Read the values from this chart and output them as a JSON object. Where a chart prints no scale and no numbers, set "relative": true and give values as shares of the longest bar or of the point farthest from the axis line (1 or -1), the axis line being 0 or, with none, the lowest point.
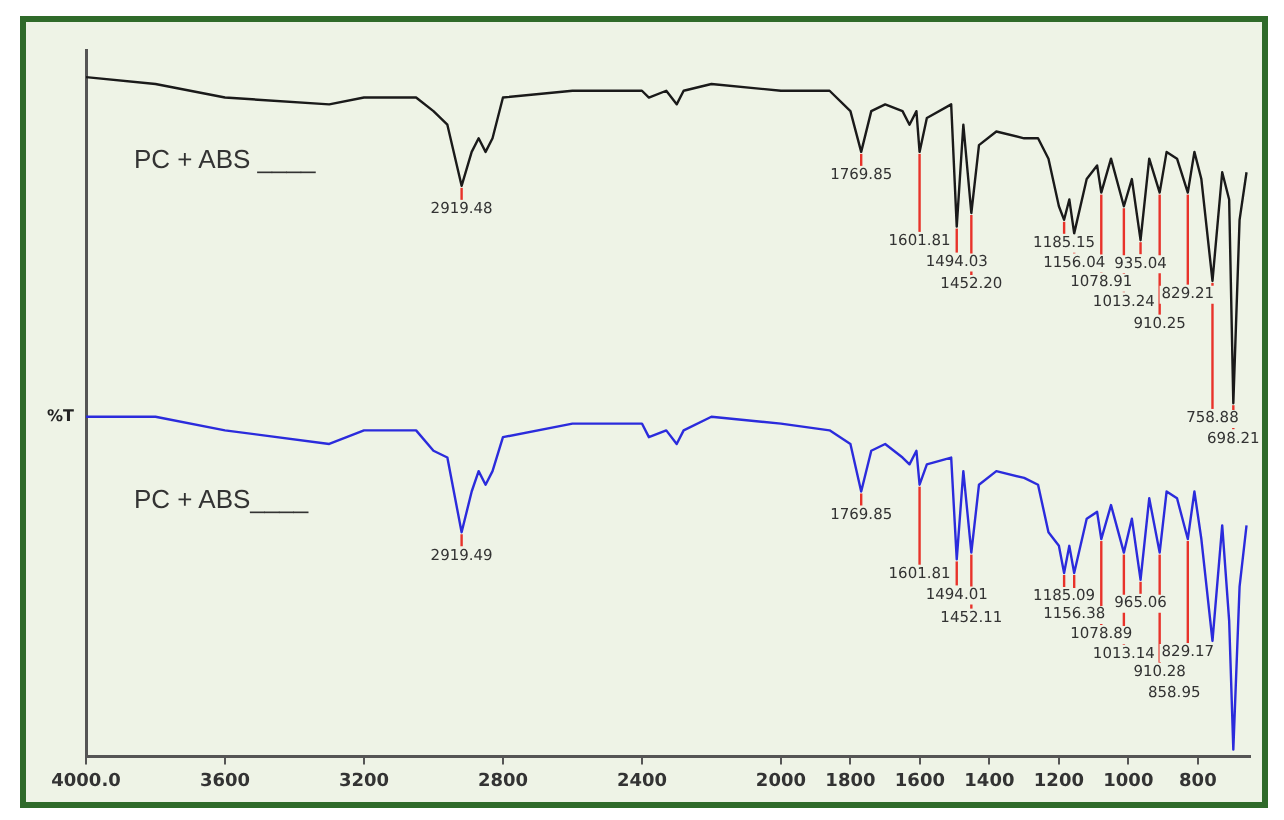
{
  "chart_data": {
    "type": "line",
    "relative": true,
    "ylabel": "%T",
    "grid": false,
    "legend": false,
    "marker": "none",
    "line_style": "solid",
    "xlim": [
      4000,
      650
    ],
    "xticks": [
      {
        "value": 4000,
        "label": "4000.0"
      },
      3600,
      3200,
      2800,
      2400,
      2000,
      1800,
      1600,
      1400,
      1200,
      1000,
      800
    ],
    "x": [
      4000,
      3800,
      3600,
      3300,
      3200,
      3050,
      3000,
      2960,
      2919,
      2890,
      2870,
      2850,
      2830,
      2800,
      2600,
      2400,
      2380,
      2330,
      2300,
      2280,
      2200,
      2000,
      1860,
      1800,
      1769,
      1740,
      1700,
      1650,
      1630,
      1610,
      1601,
      1580,
      1510,
      1494,
      1475,
      1452,
      1430,
      1380,
      1300,
      1260,
      1230,
      1200,
      1185,
      1170,
      1156,
      1120,
      1090,
      1078,
      1050,
      1013,
      990,
      965,
      940,
      910,
      890,
      860,
      829,
      810,
      790,
      758,
      730,
      710,
      698,
      680,
      660
    ],
    "series": [
      {
        "name": "PC + ABS ____",
        "color": "#1a1a1a",
        "values": [
          1.0,
          0.99,
          0.97,
          0.96,
          0.97,
          0.97,
          0.95,
          0.93,
          0.84,
          0.89,
          0.91,
          0.89,
          0.91,
          0.97,
          0.98,
          0.98,
          0.97,
          0.98,
          0.96,
          0.98,
          0.99,
          0.98,
          0.98,
          0.95,
          0.89,
          0.95,
          0.96,
          0.95,
          0.93,
          0.95,
          0.89,
          0.94,
          0.96,
          0.78,
          0.93,
          0.8,
          0.9,
          0.92,
          0.91,
          0.91,
          0.88,
          0.81,
          0.79,
          0.82,
          0.77,
          0.85,
          0.87,
          0.83,
          0.88,
          0.81,
          0.85,
          0.76,
          0.88,
          0.83,
          0.89,
          0.88,
          0.83,
          0.89,
          0.85,
          0.7,
          0.86,
          0.82,
          0.52,
          0.79,
          0.86
        ]
      },
      {
        "name": "PC + ABS____",
        "color": "#2b2bdc",
        "values": [
          0.5,
          0.5,
          0.48,
          0.46,
          0.48,
          0.48,
          0.45,
          0.44,
          0.33,
          0.39,
          0.42,
          0.4,
          0.42,
          0.47,
          0.49,
          0.49,
          0.47,
          0.48,
          0.46,
          0.48,
          0.5,
          0.49,
          0.48,
          0.46,
          0.39,
          0.45,
          0.46,
          0.44,
          0.43,
          0.45,
          0.4,
          0.43,
          0.44,
          0.29,
          0.42,
          0.3,
          0.4,
          0.42,
          0.41,
          0.4,
          0.33,
          0.31,
          0.27,
          0.31,
          0.27,
          0.35,
          0.36,
          0.32,
          0.37,
          0.3,
          0.35,
          0.26,
          0.38,
          0.3,
          0.39,
          0.38,
          0.32,
          0.39,
          0.32,
          0.17,
          0.34,
          0.2,
          0.01,
          0.25,
          0.34
        ]
      }
    ],
    "annotations": [
      {
        "text": "2919.48",
        "x": 2919,
        "y": 0.84
      },
      {
        "text": "1769.85",
        "x": 1769,
        "y": 0.89
      },
      {
        "text": "1601.81",
        "x": 1601,
        "y": 0.89
      },
      {
        "text": "1494.03",
        "x": 1494,
        "y": 0.78
      },
      {
        "text": "1452.20",
        "x": 1452,
        "y": 0.8
      },
      {
        "text": "1185.15",
        "x": 1185,
        "y": 0.79
      },
      {
        "text": "1156.04",
        "x": 1156,
        "y": 0.77
      },
      {
        "text": "1078.91",
        "x": 1078,
        "y": 0.83
      },
      {
        "text": "1013.24",
        "x": 1013,
        "y": 0.81
      },
      {
        "text": "935.04",
        "x": 965,
        "y": 0.76
      },
      {
        "text": "910.25",
        "x": 910,
        "y": 0.83
      },
      {
        "text": "829.21",
        "x": 829,
        "y": 0.83
      },
      {
        "text": "758.88",
        "x": 758,
        "y": 0.7
      },
      {
        "text": "698.21",
        "x": 698,
        "y": 0.52
      },
      {
        "text": "2919.49",
        "x": 2919,
        "y": 0.33
      },
      {
        "text": "1769.85",
        "x": 1769,
        "y": 0.39
      },
      {
        "text": "1601.81",
        "x": 1601,
        "y": 0.4
      },
      {
        "text": "1494.01",
        "x": 1494,
        "y": 0.29
      },
      {
        "text": "1452.11",
        "x": 1452,
        "y": 0.3
      },
      {
        "text": "1185.09",
        "x": 1185,
        "y": 0.27
      },
      {
        "text": "1156.38",
        "x": 1156,
        "y": 0.27
      },
      {
        "text": "1078.89",
        "x": 1078,
        "y": 0.32
      },
      {
        "text": "1013.14",
        "x": 1013,
        "y": 0.3
      },
      {
        "text": "965.06",
        "x": 965,
        "y": 0.26
      },
      {
        "text": "910.28",
        "x": 910,
        "y": 0.3
      },
      {
        "text": "829.17",
        "x": 829,
        "y": 0.32
      },
      {
        "text": "858.95",
        "x": 758,
        "y": 0.17
      }
    ]
  }
}
